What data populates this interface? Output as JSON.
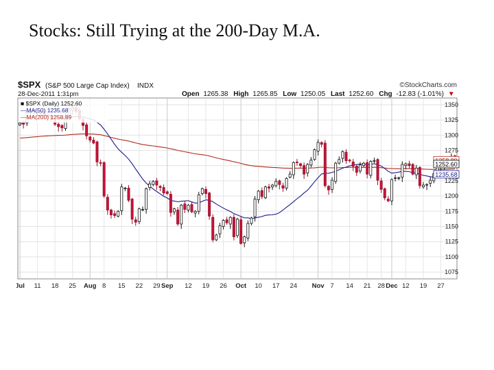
{
  "slide": {
    "title": "Stocks: Still Trying at the 200-Day M.A."
  },
  "chart_data": {
    "type": "candlestick",
    "symbol": "$SPX",
    "index_name": "(S&P 500 Large Cap Index)",
    "exchange": "INDX",
    "datetime": "28-Dec-2011 1:31pm",
    "watermark": "©StockCharts.com",
    "quote": {
      "open_label": "Open",
      "open": "1265.38",
      "high_label": "High",
      "high": "1265.85",
      "low_label": "Low",
      "low": "1250.05",
      "last_label": "Last",
      "last": "1252.60",
      "chg_label": "Chg",
      "chg": "-12.83 (-1.01%)",
      "chg_arrow": "▼"
    },
    "legend": [
      {
        "label": "■ $SPX (Daily) 1252.60",
        "color": "#000000"
      },
      {
        "label": "—MA(50) 1235.68",
        "color": "#1a1a8a"
      },
      {
        "label": "—MA(200) 1258.89",
        "color": "#b02a1a"
      }
    ],
    "ylim": [
      1065,
      1360
    ],
    "y_ticks": [
      1075,
      1100,
      1125,
      1150,
      1175,
      1200,
      1225,
      1250,
      1275,
      1300,
      1325,
      1350
    ],
    "right_labels": [
      {
        "value": 1258.89,
        "text": "1258.89",
        "color": "#b02a1a"
      },
      {
        "value": 1252.6,
        "text": "1252.60",
        "color": "#000000"
      },
      {
        "value": 1235.68,
        "text": "1235.68",
        "color": "#1a1a8a"
      }
    ],
    "x_ticks": [
      {
        "i": 0,
        "label": "Jul",
        "major": true
      },
      {
        "i": 5,
        "label": "11",
        "major": false
      },
      {
        "i": 10,
        "label": "18",
        "major": false
      },
      {
        "i": 15,
        "label": "25",
        "major": false
      },
      {
        "i": 20,
        "label": "Aug",
        "major": true
      },
      {
        "i": 24,
        "label": "8",
        "major": false
      },
      {
        "i": 29,
        "label": "15",
        "major": false
      },
      {
        "i": 34,
        "label": "22",
        "major": false
      },
      {
        "i": 39,
        "label": "29",
        "major": false
      },
      {
        "i": 42,
        "label": "Sep",
        "major": true
      },
      {
        "i": 48,
        "label": "12",
        "major": false
      },
      {
        "i": 53,
        "label": "19",
        "major": false
      },
      {
        "i": 58,
        "label": "26",
        "major": false
      },
      {
        "i": 63,
        "label": "Oct",
        "major": true
      },
      {
        "i": 68,
        "label": "10",
        "major": false
      },
      {
        "i": 73,
        "label": "17",
        "major": false
      },
      {
        "i": 78,
        "label": "24",
        "major": false
      },
      {
        "i": 85,
        "label": "Nov",
        "major": true
      },
      {
        "i": 89,
        "label": "7",
        "major": false
      },
      {
        "i": 94,
        "label": "14",
        "major": false
      },
      {
        "i": 99,
        "label": "21",
        "major": false
      },
      {
        "i": 103,
        "label": "28",
        "major": false
      },
      {
        "i": 106,
        "label": "Dec",
        "major": true
      },
      {
        "i": 110,
        "label": "12",
        "major": false
      },
      {
        "i": 115,
        "label": "19",
        "major": false
      },
      {
        "i": 120,
        "label": "27",
        "major": false
      }
    ],
    "closes": [
      1320,
      1318,
      1338,
      1340,
      1339,
      1336,
      1337,
      1334,
      1330,
      1326,
      1318,
      1314,
      1312,
      1331,
      1343,
      1345,
      1339,
      1327,
      1316,
      1299,
      1292,
      1287,
      1256,
      1254,
      1200,
      1177,
      1169,
      1168,
      1175,
      1215,
      1213,
      1193,
      1162,
      1157,
      1179,
      1178,
      1212,
      1220,
      1224,
      1218,
      1214,
      1205,
      1204,
      1173,
      1179,
      1154,
      1185,
      1178,
      1185,
      1174,
      1175,
      1202,
      1212,
      1204,
      1167,
      1128,
      1136,
      1151,
      1160,
      1156,
      1165,
      1133,
      1162,
      1122,
      1133,
      1155,
      1164,
      1195,
      1208,
      1199,
      1215,
      1213,
      1218,
      1224,
      1219,
      1213,
      1229,
      1236,
      1255,
      1255,
      1250,
      1236,
      1252,
      1259,
      1276,
      1288,
      1285,
      1217,
      1210,
      1226,
      1254,
      1260,
      1273,
      1258,
      1258,
      1249,
      1239,
      1251,
      1254,
      1236,
      1257,
      1258,
      1226,
      1211,
      1197,
      1192,
      1227,
      1230,
      1230,
      1252,
      1253,
      1250,
      1236,
      1246,
      1217,
      1218,
      1219,
      1226,
      1237,
      1249,
      1248,
      1255,
      1263,
      1265,
      1253
    ]
  }
}
